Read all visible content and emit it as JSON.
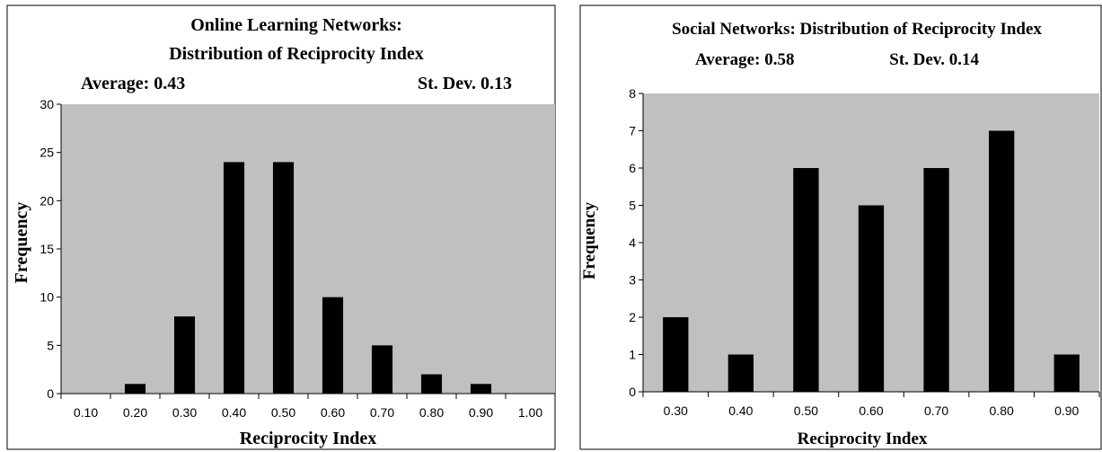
{
  "colors": {
    "plot_bg": "#c0c0c0",
    "bar": "#000000",
    "frame": "#000000",
    "page_bg": "#ffffff"
  },
  "chart_data": [
    {
      "type": "bar",
      "title_line1": "Online Learning Networks:",
      "title_line2": "Distribution of Reciprocity Index",
      "average_label": "Average: 0.43",
      "stdev_label": "St. Dev. 0.13",
      "xlabel": "Reciprocity Index",
      "ylabel": "Frequency",
      "categories": [
        "0.10",
        "0.20",
        "0.30",
        "0.40",
        "0.50",
        "0.60",
        "0.70",
        "0.80",
        "0.90",
        "1.00"
      ],
      "values": [
        0,
        1,
        8,
        24,
        24,
        10,
        5,
        2,
        1,
        0
      ],
      "yticks": [
        "0",
        "5",
        "10",
        "15",
        "20",
        "25",
        "30"
      ],
      "ylim": [
        0,
        30
      ],
      "grid": false,
      "legend": "none"
    },
    {
      "type": "bar",
      "title_line1": "Social Networks: Distribution of Reciprocity Index",
      "average_label": "Average: 0.58",
      "stdev_label": "St. Dev. 0.14",
      "xlabel": "Reciprocity Index",
      "ylabel": "Frequency",
      "categories": [
        "0.30",
        "0.40",
        "0.50",
        "0.60",
        "0.70",
        "0.80",
        "0.90"
      ],
      "values": [
        2,
        1,
        6,
        5,
        6,
        7,
        1
      ],
      "yticks": [
        "0",
        "1",
        "2",
        "3",
        "4",
        "5",
        "6",
        "7",
        "8"
      ],
      "ylim": [
        0,
        8
      ],
      "grid": false,
      "legend": "none"
    }
  ]
}
